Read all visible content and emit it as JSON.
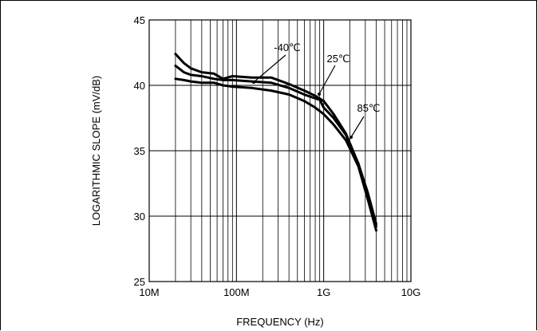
{
  "chart_data": {
    "type": "line",
    "title": "",
    "xlabel": "FREQUENCY (Hz)",
    "ylabel": "LOGARITHMIC SLOPE (mV/dB)",
    "x_scale": "log",
    "xlim": [
      10000000,
      10000000000
    ],
    "ylim": [
      25,
      45
    ],
    "x_ticks": [
      {
        "value": 10000000,
        "label": "10M"
      },
      {
        "value": 100000000,
        "label": "100M"
      },
      {
        "value": 1000000000,
        "label": "1G"
      },
      {
        "value": 10000000000,
        "label": "10G"
      }
    ],
    "y_ticks": [
      {
        "value": 25,
        "label": "25"
      },
      {
        "value": 30,
        "label": "30"
      },
      {
        "value": 35,
        "label": "35"
      },
      {
        "value": 40,
        "label": "40"
      },
      {
        "value": 45,
        "label": "45"
      }
    ],
    "grid": true,
    "series": [
      {
        "name": "-40℃",
        "color": "#000000",
        "points": [
          [
            20000000,
            42.4
          ],
          [
            25000000,
            41.7
          ],
          [
            30000000,
            41.3
          ],
          [
            40000000,
            41.0
          ],
          [
            55000000,
            40.9
          ],
          [
            70000000,
            40.5
          ],
          [
            90000000,
            40.7
          ],
          [
            150000000,
            40.6
          ],
          [
            250000000,
            40.6
          ],
          [
            400000000,
            40.1
          ],
          [
            600000000,
            39.6
          ],
          [
            800000000,
            39.2
          ],
          [
            1000000000,
            38.8
          ],
          [
            1300000000,
            37.8
          ],
          [
            1800000000,
            36.3
          ],
          [
            2500000000,
            34.0
          ],
          [
            3200000000,
            31.8
          ],
          [
            4000000000,
            29.4
          ]
        ]
      },
      {
        "name": "25℃",
        "color": "#000000",
        "points": [
          [
            20000000,
            41.5
          ],
          [
            25000000,
            41.0
          ],
          [
            30000000,
            40.8
          ],
          [
            40000000,
            40.7
          ],
          [
            55000000,
            40.5
          ],
          [
            70000000,
            40.4
          ],
          [
            90000000,
            40.4
          ],
          [
            150000000,
            40.3
          ],
          [
            250000000,
            40.2
          ],
          [
            400000000,
            39.8
          ],
          [
            600000000,
            39.3
          ],
          [
            800000000,
            39.0
          ],
          [
            900000000,
            38.9
          ],
          [
            1000000000,
            38.3
          ],
          [
            1300000000,
            37.5
          ],
          [
            1800000000,
            36.2
          ],
          [
            2500000000,
            34.0
          ],
          [
            3200000000,
            31.6
          ],
          [
            4000000000,
            29.2
          ]
        ]
      },
      {
        "name": "85℃",
        "color": "#000000",
        "points": [
          [
            20000000,
            40.5
          ],
          [
            25000000,
            40.4
          ],
          [
            30000000,
            40.3
          ],
          [
            40000000,
            40.2
          ],
          [
            55000000,
            40.2
          ],
          [
            70000000,
            40.0
          ],
          [
            90000000,
            39.9
          ],
          [
            150000000,
            39.8
          ],
          [
            250000000,
            39.6
          ],
          [
            400000000,
            39.3
          ],
          [
            600000000,
            38.8
          ],
          [
            800000000,
            38.3
          ],
          [
            1000000000,
            37.8
          ],
          [
            1300000000,
            37.0
          ],
          [
            1800000000,
            35.8
          ],
          [
            2500000000,
            33.8
          ],
          [
            3200000000,
            31.3
          ],
          [
            4000000000,
            28.9
          ]
        ]
      }
    ],
    "annotations": [
      {
        "text": "-40℃",
        "series": "-40℃"
      },
      {
        "text": "25℃",
        "series": "25℃"
      },
      {
        "text": "85℃",
        "series": "85℃"
      }
    ]
  }
}
